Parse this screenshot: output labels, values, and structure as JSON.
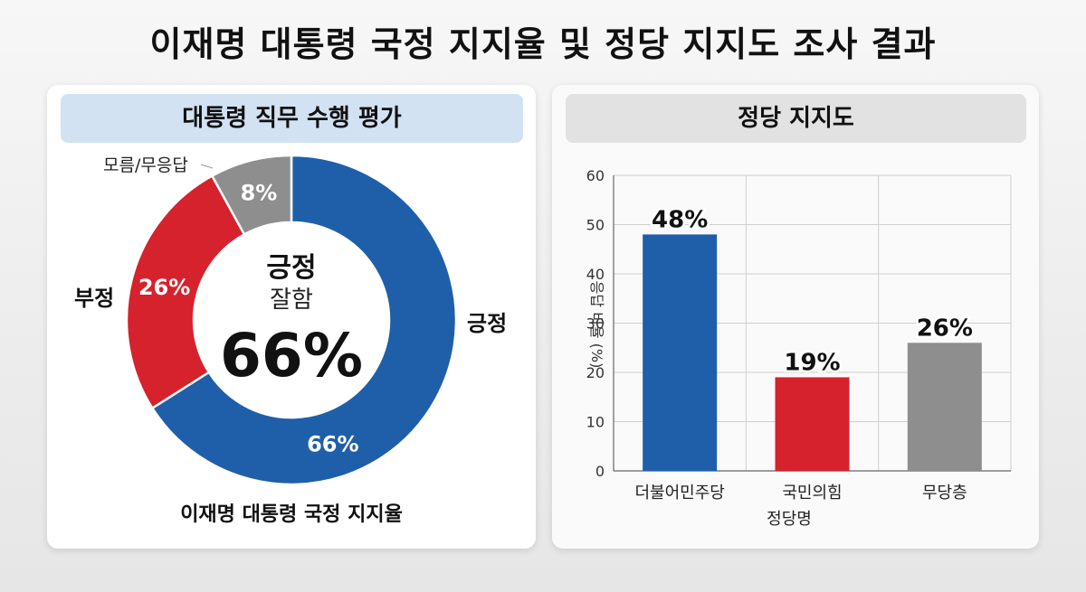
{
  "title": "이재명 대통령 국정 지지율 및 정당 지지도 조사 결과",
  "left_panel": {
    "header": "대통령 직무 수행 평가",
    "center_label": "긍정",
    "center_sublabel": "잘함",
    "center_value": "66%",
    "caption": "이재명 대통령 국정 지지율",
    "outer_labels": {
      "positive": "긍정",
      "negative": "부정",
      "unknown": "모름/무응답"
    }
  },
  "right_panel": {
    "header": "정당 지지도"
  },
  "colors": {
    "blue": "#1f5fa9",
    "red": "#d5222c",
    "gray": "#8e8e8e"
  },
  "chart_data": [
    {
      "type": "pie",
      "subtype": "donut",
      "labels": [
        "긍정",
        "부정",
        "모름/무응답"
      ],
      "values": [
        66,
        26,
        8
      ],
      "value_labels": [
        "66%",
        "26%",
        "8%"
      ],
      "colors": [
        "#1f5fa9",
        "#d5222c",
        "#8e8e8e"
      ]
    },
    {
      "type": "bar",
      "categories": [
        "더불어민주당",
        "국민의힘",
        "무당층"
      ],
      "values": [
        48,
        19,
        26
      ],
      "value_labels": [
        "48%",
        "19%",
        "26%"
      ],
      "colors": [
        "#1f5fa9",
        "#d5222c",
        "#8e8e8e"
      ],
      "ylabel": "응답 비율 (%)",
      "xlabel": "정당명",
      "ylim": [
        0,
        60
      ],
      "yticks": [
        "0",
        "10",
        "20",
        "30",
        "40",
        "50",
        "60"
      ],
      "grid": true
    }
  ]
}
